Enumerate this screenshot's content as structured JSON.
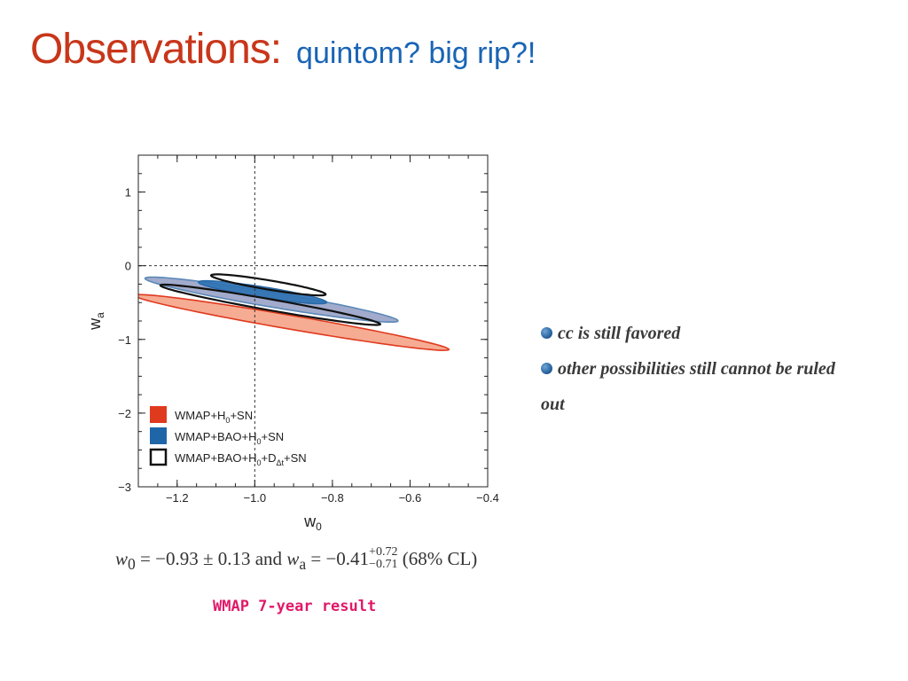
{
  "title": {
    "main": "Observations:",
    "sub": "quintom? big rip?!"
  },
  "chart_data": {
    "type": "contour",
    "xlabel": "w",
    "xlabel_sub": "0",
    "ylabel": "w",
    "ylabel_sub": "a",
    "xlim": [
      -1.3,
      -0.4
    ],
    "ylim": [
      -3,
      1.5
    ],
    "xticks": [
      -1.2,
      -1.0,
      -0.8,
      -0.6,
      -0.4
    ],
    "xtick_labels": [
      "−1.2",
      "−1.0",
      "−0.8",
      "−0.6",
      "−0.4"
    ],
    "yticks": [
      1,
      0,
      -1,
      -2,
      -3
    ],
    "ytick_labels": [
      "1",
      "0",
      "−1",
      "−2",
      "−3"
    ],
    "reference_lines": {
      "x": -1.0,
      "y": 0
    },
    "series": [
      {
        "name": "WMAP+H0+SN",
        "color": "#e03a1e",
        "contours": [
          {
            "cx": -0.905,
            "cy": -0.77,
            "rx": 0.55,
            "ry": 0.07,
            "rotation_deg": -43,
            "fill": "#f4a58a",
            "stroke": "#e03a1e"
          }
        ]
      },
      {
        "name": "WMAP+BAO+H0+SN",
        "color": "#1f66a8",
        "contours": [
          {
            "cx": -0.957,
            "cy": -0.46,
            "rx": 0.44,
            "ry": 0.075,
            "rotation_deg": -43,
            "fill": "#9aa4c8",
            "stroke": "#5a88b8"
          },
          {
            "cx": -0.98,
            "cy": -0.36,
            "rx": 0.22,
            "ry": 0.055,
            "rotation_deg": -43,
            "fill": "#2f72b3",
            "stroke": "#2a6aa8"
          }
        ]
      },
      {
        "name": "WMAP+BAO+H0+DΔt+SN",
        "color": "#000000",
        "contours": [
          {
            "cx": -0.96,
            "cy": -0.53,
            "rx": 0.39,
            "ry": 0.055,
            "rotation_deg": -44,
            "fill": "none",
            "stroke": "#111111"
          },
          {
            "cx": -0.965,
            "cy": -0.26,
            "rx": 0.2,
            "ry": 0.047,
            "rotation_deg": -44,
            "fill": "none",
            "stroke": "#111111"
          }
        ]
      }
    ],
    "legend": {
      "placement": "bottom-left",
      "entries": [
        {
          "color": "#e03a1e",
          "style": "filled",
          "base": "WMAP+H",
          "sub": "0",
          "rest": "+SN"
        },
        {
          "color": "#1f66a8",
          "style": "filled",
          "base": "WMAP+BAO+H",
          "sub": "0",
          "rest": "+SN"
        },
        {
          "color": "#111111",
          "style": "outline",
          "base": "WMAP+BAO+H",
          "sub": "0",
          "mid": "+D",
          "sub2": "Δt",
          "rest": "+SN"
        }
      ]
    }
  },
  "equation": {
    "w0": "w",
    "w0_sub": "0",
    "eq1": " = −0.93 ± 0.13  and  ",
    "wa": "w",
    "wa_sub": "a",
    "eq2": " = −0.41",
    "sup": "+0.72",
    "sub": "−0.71",
    "cl": " (68% CL)"
  },
  "caption": "WMAP 7-year result",
  "notes": [
    "cc is still favored",
    "other possibilities still cannot be ruled out"
  ]
}
